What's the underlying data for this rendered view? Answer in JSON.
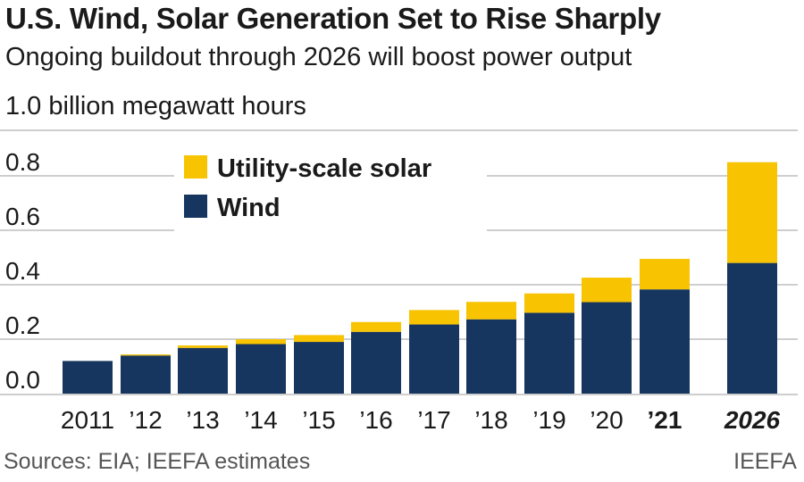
{
  "colors": {
    "wind": "#17365f",
    "solar": "#f8c300",
    "grid": "#bdbdbd"
  },
  "text": {
    "title": "U.S. Wind, Solar Generation Set to Rise Sharply",
    "subtitle": "Ongoing buildout through 2026 will boost power output",
    "unit_label": "1.0 billion megawatt hours",
    "source": "Sources: EIA; IEEFA estimates",
    "credit": "IEEFA"
  },
  "chart_data": {
    "type": "bar",
    "stacked": true,
    "categories": [
      "2011",
      "’12",
      "’13",
      "’14",
      "’15",
      "’16",
      "’17",
      "’18",
      "’19",
      "’20",
      "’21",
      "2026"
    ],
    "series": [
      {
        "name": "Wind",
        "values": [
          0.12,
          0.14,
          0.168,
          0.182,
          0.19,
          0.227,
          0.254,
          0.273,
          0.297,
          0.336,
          0.383,
          0.48
        ]
      },
      {
        "name": "Utility-scale solar",
        "values": [
          0.0,
          0.004,
          0.009,
          0.018,
          0.025,
          0.036,
          0.053,
          0.064,
          0.071,
          0.09,
          0.112,
          0.37
        ]
      }
    ],
    "bold_categories": [
      "’21",
      "2026"
    ],
    "italic_categories": [
      "2026"
    ],
    "ylim": [
      0,
      0.9
    ],
    "yticks": [
      "0.0",
      "0.2",
      "0.4",
      "0.6",
      "0.8"
    ],
    "ytick_values": [
      0,
      0.2,
      0.4,
      0.6,
      0.8
    ],
    "grid": true,
    "legend": {
      "placement": "top-left",
      "entries": [
        "Utility-scale solar",
        "Wind"
      ]
    }
  }
}
